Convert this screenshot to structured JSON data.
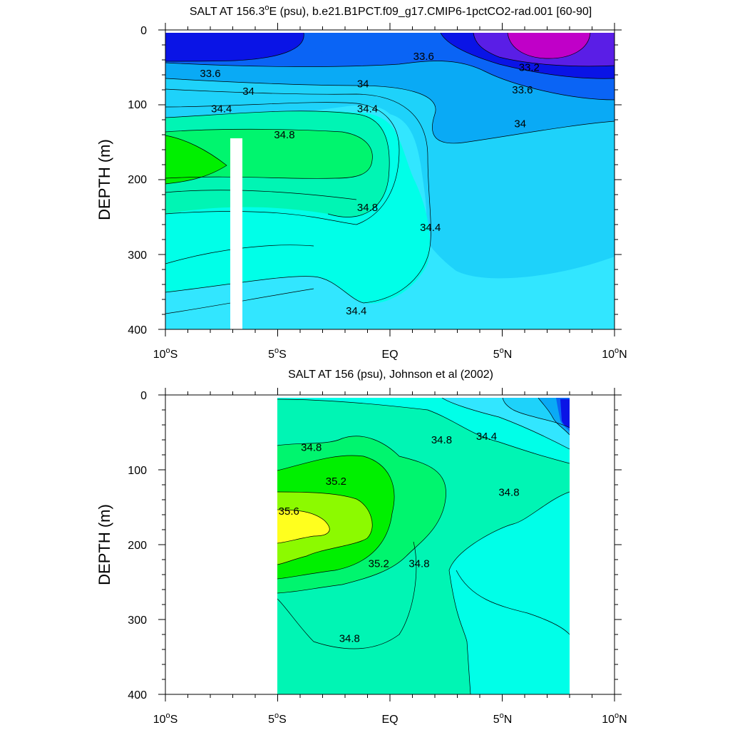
{
  "figure": {
    "panels": [
      {
        "title": "SALT AT 156.3°E (psu), b.e21.B1PCT.f09_g17.CMIP6-1pctCO2-rad.001 [60-90]",
        "title_parts": [
          "SALT AT 156.3",
          "o",
          "E (psu), b.e21.B1PCT.f09_g17.CMIP6-1pctCO2-rad.001 [60-90]"
        ],
        "ylabel": "DEPTH (m)",
        "yticks": [
          "0",
          "100",
          "200",
          "300",
          "400"
        ],
        "xticks": [
          {
            "num": "10",
            "deg": "o",
            "hemi": "S"
          },
          {
            "num": "5",
            "deg": "o",
            "hemi": "S"
          },
          {
            "num": "EQ",
            "deg": "",
            "hemi": ""
          },
          {
            "num": "5",
            "deg": "o",
            "hemi": "N"
          },
          {
            "num": "10",
            "deg": "o",
            "hemi": "N"
          }
        ]
      },
      {
        "title": "SALT AT 156 (psu), Johnson et al (2002)",
        "ylabel": "DEPTH (m)",
        "yticks": [
          "0",
          "100",
          "200",
          "300",
          "400"
        ],
        "xticks": [
          {
            "num": "10",
            "deg": "o",
            "hemi": "S"
          },
          {
            "num": "5",
            "deg": "o",
            "hemi": "S"
          },
          {
            "num": "EQ",
            "deg": "",
            "hemi": ""
          },
          {
            "num": "5",
            "deg": "o",
            "hemi": "N"
          },
          {
            "num": "10",
            "deg": "o",
            "hemi": "N"
          }
        ]
      }
    ]
  },
  "colors": {
    "s33_2": "#c000c8",
    "s33_4": "#5a1ee6",
    "s33_6": "#0a14e6",
    "s33_8": "#0a64f5",
    "s34_0": "#0aaaf5",
    "s34_2": "#1ed2fa",
    "s34_4": "#32e6ff",
    "s34_6": "#00ffe8",
    "s34_8": "#00f5b4",
    "s35_0": "#00f56e",
    "s35_2": "#00f000",
    "s35_4": "#8cfa00",
    "s35_6": "#ffff1e"
  },
  "chart_data": [
    {
      "type": "contour",
      "title": "SALT AT 156.3°E (psu), b.e21.B1PCT.f09_g17.CMIP6-1pctCO2-rad.001 [60-90]",
      "xlabel": "",
      "ylabel": "DEPTH (m)",
      "x_range_deg_lat": [
        -10,
        10
      ],
      "y_range_m": [
        0,
        400
      ],
      "y_reversed": true,
      "contour_labels": [
        {
          "text": "33.6",
          "lat": 1.5,
          "depth_m": 35
        },
        {
          "text": "33.6",
          "lat": -8.0,
          "depth_m": 58
        },
        {
          "text": "33.2",
          "lat": 6.2,
          "depth_m": 50
        },
        {
          "text": "34",
          "lat": -6.3,
          "depth_m": 82
        },
        {
          "text": "34",
          "lat": -1.2,
          "depth_m": 72
        },
        {
          "text": "33.6",
          "lat": 5.9,
          "depth_m": 80
        },
        {
          "text": "34.4",
          "lat": -7.5,
          "depth_m": 105
        },
        {
          "text": "34.4",
          "lat": -1.0,
          "depth_m": 105
        },
        {
          "text": "34",
          "lat": 5.8,
          "depth_m": 125
        },
        {
          "text": "34.8",
          "lat": -4.7,
          "depth_m": 140
        },
        {
          "text": "34.8",
          "lat": -1.0,
          "depth_m": 237
        },
        {
          "text": "34.4",
          "lat": 1.8,
          "depth_m": 264
        },
        {
          "text": "34.4",
          "lat": -1.5,
          "depth_m": 375
        }
      ]
    },
    {
      "type": "contour",
      "title": "SALT AT 156 (psu), Johnson et al (2002)",
      "xlabel": "",
      "ylabel": "DEPTH (m)",
      "x_range_deg_lat": [
        -10,
        10
      ],
      "data_x_range_deg_lat": [
        -5,
        8
      ],
      "y_range_m": [
        0,
        400
      ],
      "y_reversed": true,
      "contour_labels": [
        {
          "text": "34.8",
          "lat": -3.5,
          "depth_m": 70
        },
        {
          "text": "34.8",
          "lat": 2.3,
          "depth_m": 60
        },
        {
          "text": "34.4",
          "lat": 4.3,
          "depth_m": 55
        },
        {
          "text": "35.2",
          "lat": -2.4,
          "depth_m": 115
        },
        {
          "text": "34.8",
          "lat": 5.3,
          "depth_m": 130
        },
        {
          "text": "35.6",
          "lat": -4.5,
          "depth_m": 155
        },
        {
          "text": "35.2",
          "lat": -0.5,
          "depth_m": 225
        },
        {
          "text": "34.8",
          "lat": 1.3,
          "depth_m": 225
        },
        {
          "text": "34.8",
          "lat": -1.8,
          "depth_m": 325
        }
      ]
    }
  ]
}
